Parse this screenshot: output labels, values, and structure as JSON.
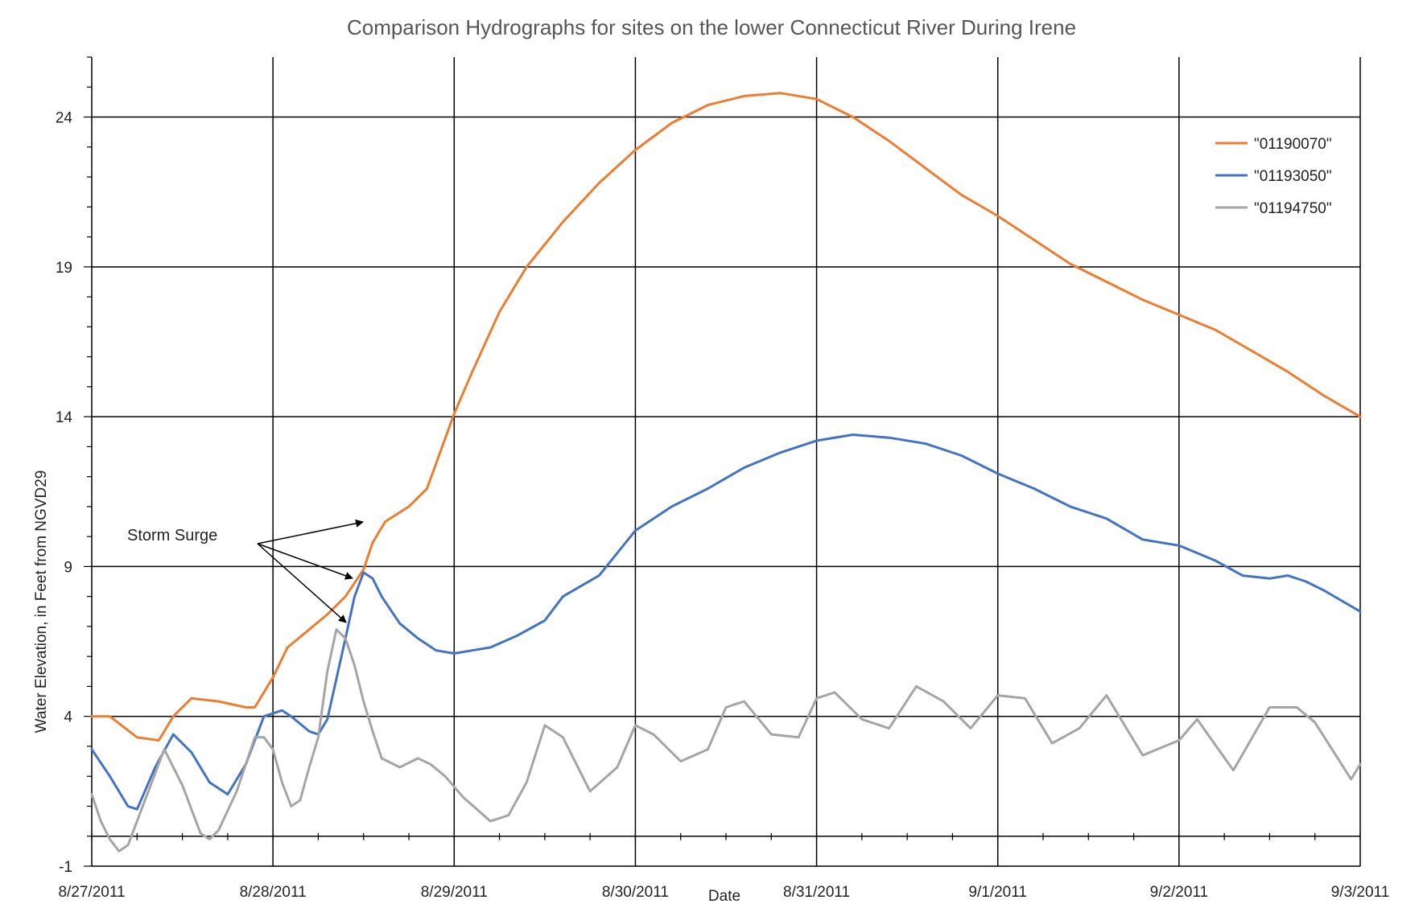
{
  "chart_data": {
    "type": "line",
    "title": "Comparison Hydrographs for sites on the lower Connecticut River During Irene",
    "xlabel": "Date",
    "ylabel": "Water Elevation, in Feet from NGVD29",
    "x_ticks": [
      "8/27/2011",
      "8/28/2011",
      "8/29/2011",
      "8/30/2011",
      "8/31/2011",
      "9/1/2011",
      "9/2/2011",
      "9/3/2011"
    ],
    "x_unit": "days since 8/27/2011 00:00",
    "xlim": [
      0,
      7
    ],
    "y_ticks": [
      -1,
      4,
      9,
      14,
      19,
      24
    ],
    "ylim": [
      -1,
      26
    ],
    "grid": true,
    "legend_position": "top-right",
    "series": [
      {
        "name": "\"01190070\"",
        "color": "#ED7D31",
        "x": [
          0,
          0.1,
          0.25,
          0.37,
          0.45,
          0.55,
          0.7,
          0.85,
          0.9,
          1.0,
          1.08,
          1.2,
          1.3,
          1.4,
          1.5,
          1.55,
          1.62,
          1.75,
          1.85,
          2.0,
          2.1,
          2.25,
          2.4,
          2.6,
          2.8,
          3.0,
          3.2,
          3.4,
          3.6,
          3.8,
          4.0,
          4.2,
          4.4,
          4.6,
          4.8,
          5.0,
          5.2,
          5.4,
          5.6,
          5.8,
          6.0,
          6.2,
          6.4,
          6.6,
          6.8,
          7.0
        ],
        "values": [
          4.0,
          4.0,
          3.3,
          3.2,
          4.0,
          4.6,
          4.5,
          4.3,
          4.3,
          5.3,
          6.3,
          6.9,
          7.4,
          8.0,
          8.9,
          9.8,
          10.5,
          11.0,
          11.6,
          14.1,
          15.5,
          17.5,
          19.0,
          20.5,
          21.8,
          22.9,
          23.8,
          24.4,
          24.7,
          24.8,
          24.6,
          24.0,
          23.2,
          22.3,
          21.4,
          20.7,
          19.9,
          19.1,
          18.5,
          17.9,
          17.4,
          16.9,
          16.2,
          15.5,
          14.7,
          14.0
        ]
      },
      {
        "name": "\"01193050\"",
        "color": "#4472C4",
        "x": [
          0,
          0.1,
          0.2,
          0.25,
          0.35,
          0.45,
          0.55,
          0.65,
          0.75,
          0.85,
          0.95,
          1.05,
          1.1,
          1.2,
          1.25,
          1.3,
          1.4,
          1.45,
          1.5,
          1.55,
          1.6,
          1.7,
          1.8,
          1.9,
          2.0,
          2.1,
          2.2,
          2.35,
          2.5,
          2.6,
          2.8,
          3.0,
          3.2,
          3.4,
          3.6,
          3.8,
          4.0,
          4.2,
          4.4,
          4.6,
          4.8,
          5.0,
          5.2,
          5.4,
          5.6,
          5.8,
          6.0,
          6.2,
          6.35,
          6.5,
          6.6,
          6.7,
          6.8,
          7.0
        ],
        "values": [
          2.9,
          2.0,
          1.0,
          0.9,
          2.3,
          3.4,
          2.8,
          1.8,
          1.4,
          2.4,
          4.0,
          4.2,
          4.0,
          3.5,
          3.4,
          3.9,
          6.6,
          8.0,
          8.8,
          8.6,
          8.0,
          7.1,
          6.6,
          6.2,
          6.1,
          6.2,
          6.3,
          6.7,
          7.2,
          8.0,
          8.7,
          10.2,
          11.0,
          11.6,
          12.3,
          12.8,
          13.2,
          13.4,
          13.3,
          13.1,
          12.7,
          12.1,
          11.6,
          11.0,
          10.6,
          9.9,
          9.7,
          9.2,
          8.7,
          8.6,
          8.7,
          8.5,
          8.2,
          7.5
        ]
      },
      {
        "name": "\"01194750\"",
        "color": "#A5A5A5",
        "x": [
          0,
          0.05,
          0.1,
          0.15,
          0.2,
          0.3,
          0.4,
          0.5,
          0.6,
          0.65,
          0.7,
          0.8,
          0.9,
          0.95,
          1.0,
          1.05,
          1.1,
          1.15,
          1.2,
          1.25,
          1.3,
          1.35,
          1.4,
          1.45,
          1.5,
          1.55,
          1.6,
          1.7,
          1.8,
          1.87,
          1.95,
          2.05,
          2.2,
          2.3,
          2.4,
          2.5,
          2.6,
          2.75,
          2.9,
          3.0,
          3.1,
          3.25,
          3.4,
          3.5,
          3.6,
          3.75,
          3.9,
          4.0,
          4.1,
          4.25,
          4.4,
          4.55,
          4.7,
          4.85,
          5.0,
          5.15,
          5.3,
          5.45,
          5.6,
          5.8,
          6.0,
          6.1,
          6.3,
          6.5,
          6.65,
          6.75,
          6.95,
          7.0
        ],
        "values": [
          1.4,
          0.5,
          -0.1,
          -0.5,
          -0.3,
          1.3,
          2.9,
          1.7,
          0.1,
          -0.1,
          0.2,
          1.5,
          3.3,
          3.3,
          2.9,
          1.8,
          1.0,
          1.2,
          2.3,
          3.3,
          5.5,
          6.9,
          6.6,
          5.7,
          4.5,
          3.5,
          2.6,
          2.3,
          2.6,
          2.4,
          2.0,
          1.3,
          0.5,
          0.7,
          1.8,
          3.7,
          3.3,
          1.5,
          2.3,
          3.7,
          3.4,
          2.5,
          2.9,
          4.3,
          4.5,
          3.4,
          3.3,
          4.6,
          4.8,
          3.9,
          3.6,
          5.0,
          4.5,
          3.6,
          4.7,
          4.6,
          3.1,
          3.6,
          4.7,
          2.7,
          3.2,
          3.9,
          2.2,
          4.3,
          4.3,
          3.8,
          1.9,
          2.4
        ]
      }
    ],
    "annotation": {
      "text": "Storm Surge"
    }
  }
}
